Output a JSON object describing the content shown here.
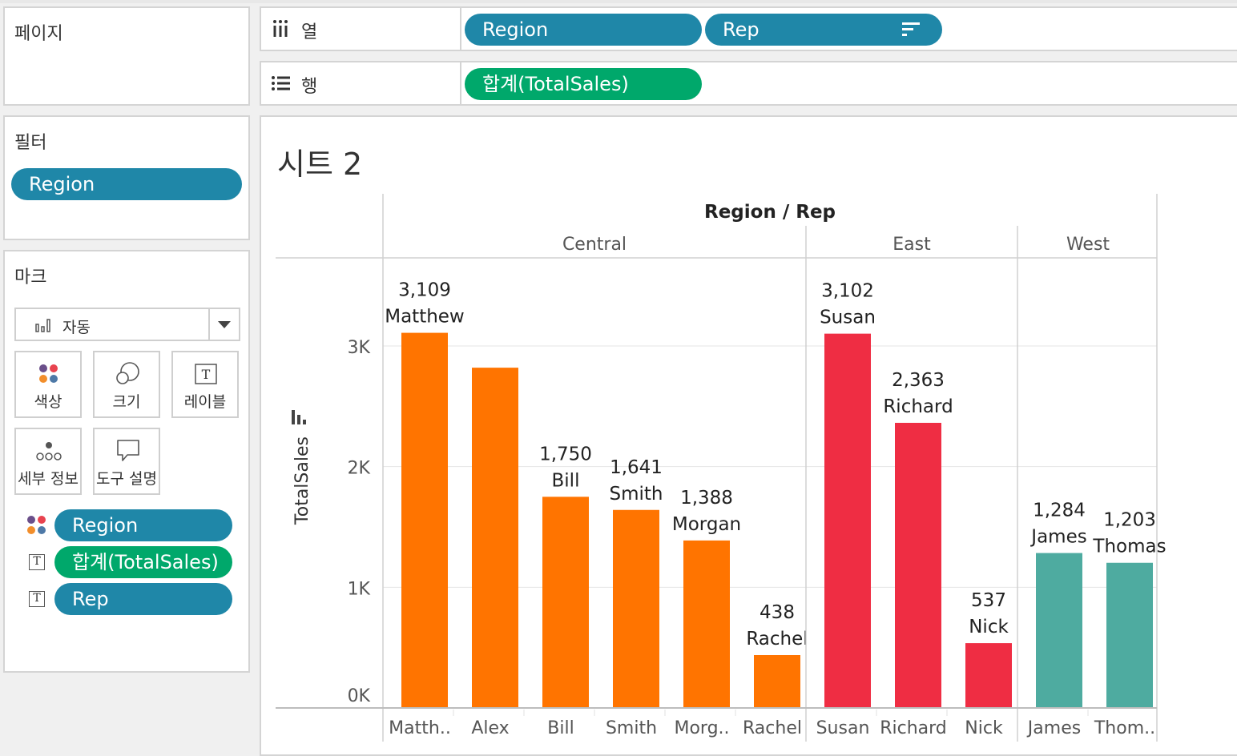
{
  "pages_card": {
    "title": "페이지"
  },
  "filters_card": {
    "title": "필터",
    "pills": [
      {
        "label": "Region"
      }
    ]
  },
  "marks_card": {
    "title": "마크",
    "mark_type": "자동",
    "buttons": [
      {
        "label": "색상",
        "icon": "color-dots-icon"
      },
      {
        "label": "크기",
        "icon": "size-circles-icon"
      },
      {
        "label": "레이블",
        "icon": "label-T-icon"
      },
      {
        "label": "세부 정보",
        "icon": "detail-dots-icon"
      },
      {
        "label": "도구 설명",
        "icon": "tooltip-bubble-icon"
      }
    ],
    "fields": [
      {
        "label": "Region",
        "icon": "color-dots-icon",
        "color": "#1f87a8"
      },
      {
        "label": "합계(TotalSales)",
        "icon": "label-T-icon",
        "color": "#00a86b"
      },
      {
        "label": "Rep",
        "icon": "label-T-icon",
        "color": "#1f87a8"
      }
    ]
  },
  "shelves": {
    "columns": {
      "label": "열",
      "pills": [
        {
          "label": "Region"
        },
        {
          "label": "Rep"
        }
      ]
    },
    "rows": {
      "label": "행",
      "pills": [
        {
          "label": "합계(TotalSales)"
        }
      ]
    }
  },
  "sheet": {
    "title": "시트 2"
  },
  "chart_data": {
    "type": "bar",
    "title": "Region / Rep",
    "ylabel": "TotalSales",
    "ylim": [
      0,
      3700
    ],
    "yticks": [
      0,
      1000,
      2000,
      3000
    ],
    "ytick_labels": [
      "0K",
      "1K",
      "2K",
      "3K"
    ],
    "groups": [
      {
        "name": "Central",
        "color": "#ff7400",
        "bars": [
          {
            "rep": "Matthew",
            "axis_label": "Matth..",
            "value": 3109,
            "mark_label": "3,109"
          },
          {
            "rep": "Alex",
            "axis_label": "Alex",
            "value": 2820,
            "mark_label": ""
          },
          {
            "rep": "Bill",
            "axis_label": "Bill",
            "value": 1750,
            "mark_label": "1,750"
          },
          {
            "rep": "Smith",
            "axis_label": "Smith",
            "value": 1641,
            "mark_label": "1,641"
          },
          {
            "rep": "Morgan",
            "axis_label": "Morg..",
            "value": 1388,
            "mark_label": "1,388"
          },
          {
            "rep": "Rachel",
            "axis_label": "Rachel",
            "value": 438,
            "mark_label": "438"
          }
        ]
      },
      {
        "name": "East",
        "color": "#ef2d43",
        "bars": [
          {
            "rep": "Susan",
            "axis_label": "Susan",
            "value": 3102,
            "mark_label": "3,102"
          },
          {
            "rep": "Richard",
            "axis_label": "Richard",
            "value": 2363,
            "mark_label": "2,363"
          },
          {
            "rep": "Nick",
            "axis_label": "Nick",
            "value": 537,
            "mark_label": "537"
          }
        ]
      },
      {
        "name": "West",
        "color": "#4eaba0",
        "bars": [
          {
            "rep": "James",
            "axis_label": "James",
            "value": 1284,
            "mark_label": "1,284"
          },
          {
            "rep": "Thomas",
            "axis_label": "Thom..",
            "value": 1203,
            "mark_label": "1,203"
          }
        ]
      }
    ],
    "grid": true,
    "legend": "none"
  }
}
